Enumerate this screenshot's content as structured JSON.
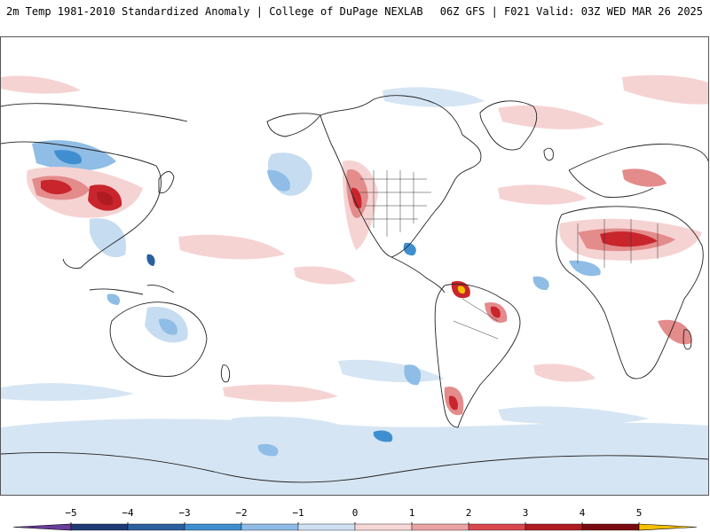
{
  "header": {
    "title_left": "2m Temp 1981-2010 Standardized Anomaly | College of DuPage NEXLAB",
    "title_right": "06Z GFS | F021 Valid: 03Z WED MAR 26 2025"
  },
  "colorbar": {
    "ticks": [
      {
        "label": "−5",
        "value": -5
      },
      {
        "label": "−4",
        "value": -4
      },
      {
        "label": "−3",
        "value": -3
      },
      {
        "label": "−2",
        "value": -2
      },
      {
        "label": "−1",
        "value": -1
      },
      {
        "label": "0",
        "value": 0
      },
      {
        "label": "1",
        "value": 1
      },
      {
        "label": "2",
        "value": 2
      },
      {
        "label": "3",
        "value": 3
      },
      {
        "label": "4",
        "value": 4
      },
      {
        "label": "5",
        "value": 5
      }
    ],
    "colors": {
      "below": "#6a3d9a",
      "bins": [
        "#1f3b73",
        "#2c5fa0",
        "#3f8fd0",
        "#8ebce6",
        "#cfe0f2",
        "#ffffff",
        "#f7d6d6",
        "#eba3a3",
        "#d9484d",
        "#b01b22",
        "#7a0a10"
      ],
      "above": "#f5c000"
    }
  },
  "map": {
    "colors": {
      "coast": "#222222",
      "warm_light": "#f6d3d3",
      "warm_mid": "#e48b8b",
      "warm_strong": "#c8252c",
      "cold_light": "#d5e5f4",
      "cold_mid": "#8fbde6",
      "cold_strong": "#3f8fd0"
    }
  }
}
